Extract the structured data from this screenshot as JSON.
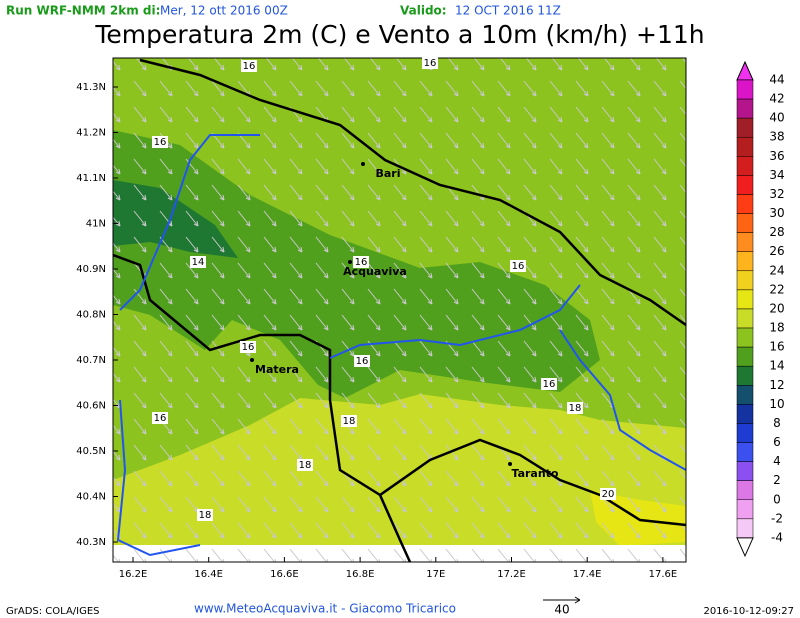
{
  "header": {
    "run_label": "Run WRF-NMM 2km di:",
    "run_date": "Mer, 12 ott 2016 00Z",
    "valid_label": "Valido:",
    "valid_date": "12 OCT 2016 11Z",
    "title": "Temperatura 2m (C) e Vento a 10m (km/h) +11h"
  },
  "map": {
    "lat_labels": [
      "41.3N",
      "41.2N",
      "41.1N",
      "41N",
      "40.9N",
      "40.8N",
      "40.7N",
      "40.6N",
      "40.5N",
      "40.4N",
      "40.3N"
    ],
    "lon_labels": [
      "16.2E",
      "16.4E",
      "16.6E",
      "16.8E",
      "17E",
      "17.2E",
      "17.4E",
      "17.6E"
    ],
    "cities": [
      "Bari",
      "Acquaviva",
      "Matera",
      "Taranto"
    ],
    "contour_labels": [
      "16",
      "16",
      "16",
      "14",
      "16",
      "16",
      "16",
      "16",
      "16",
      "16",
      "18",
      "18",
      "18",
      "18",
      "20"
    ]
  },
  "colorbar": {
    "labels": [
      "44",
      "42",
      "40",
      "38",
      "36",
      "34",
      "32",
      "30",
      "28",
      "26",
      "24",
      "22",
      "20",
      "18",
      "16",
      "14",
      "12",
      "10",
      "8",
      "6",
      "4",
      "2",
      "0",
      "-2",
      "-4"
    ],
    "colors": [
      "#f032f0",
      "#dc14c8",
      "#b4148c",
      "#a01e28",
      "#b41e1e",
      "#d21e1e",
      "#f01e1e",
      "#ff3c14",
      "#ff6414",
      "#ff8c1e",
      "#ffb41e",
      "#f0d21e",
      "#e6e614",
      "#c8dc28",
      "#8cc31e",
      "#50a01e",
      "#1e7832",
      "#14506e",
      "#1432a0",
      "#1e3cd2",
      "#3c50f0",
      "#8c50f0",
      "#dc78e6",
      "#f0a0f0",
      "#f5c8f5",
      "#ffffff"
    ]
  },
  "footer": {
    "credit_left": "GrADS: COLA/IGES",
    "website": "www.MeteoAcquaviva.it - Giacomo Tricarico",
    "vector_scale": "40",
    "timestamp": "2016-10-12-09:27"
  }
}
